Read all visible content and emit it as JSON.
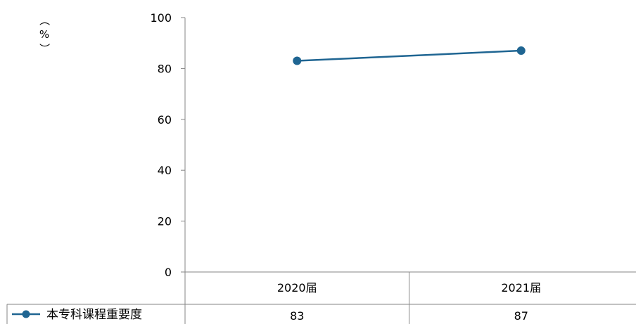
{
  "chart_data": {
    "type": "line",
    "categories": [
      "2020届",
      "2021届"
    ],
    "series": [
      {
        "name": "本专科课程重要度",
        "values": [
          83,
          87
        ],
        "color": "#1f6592"
      }
    ],
    "ylabel": "（%）",
    "ylim": [
      0,
      100
    ],
    "yticks": [
      0,
      20,
      40,
      60,
      80,
      100
    ],
    "ytick_labels": [
      "0",
      "20",
      "40",
      "60",
      "80",
      "100"
    ],
    "grid": false,
    "legend": "data-table-left",
    "data_table": true
  },
  "y_unit": {
    "open": "（",
    "symbol": "%",
    "close": "）"
  }
}
